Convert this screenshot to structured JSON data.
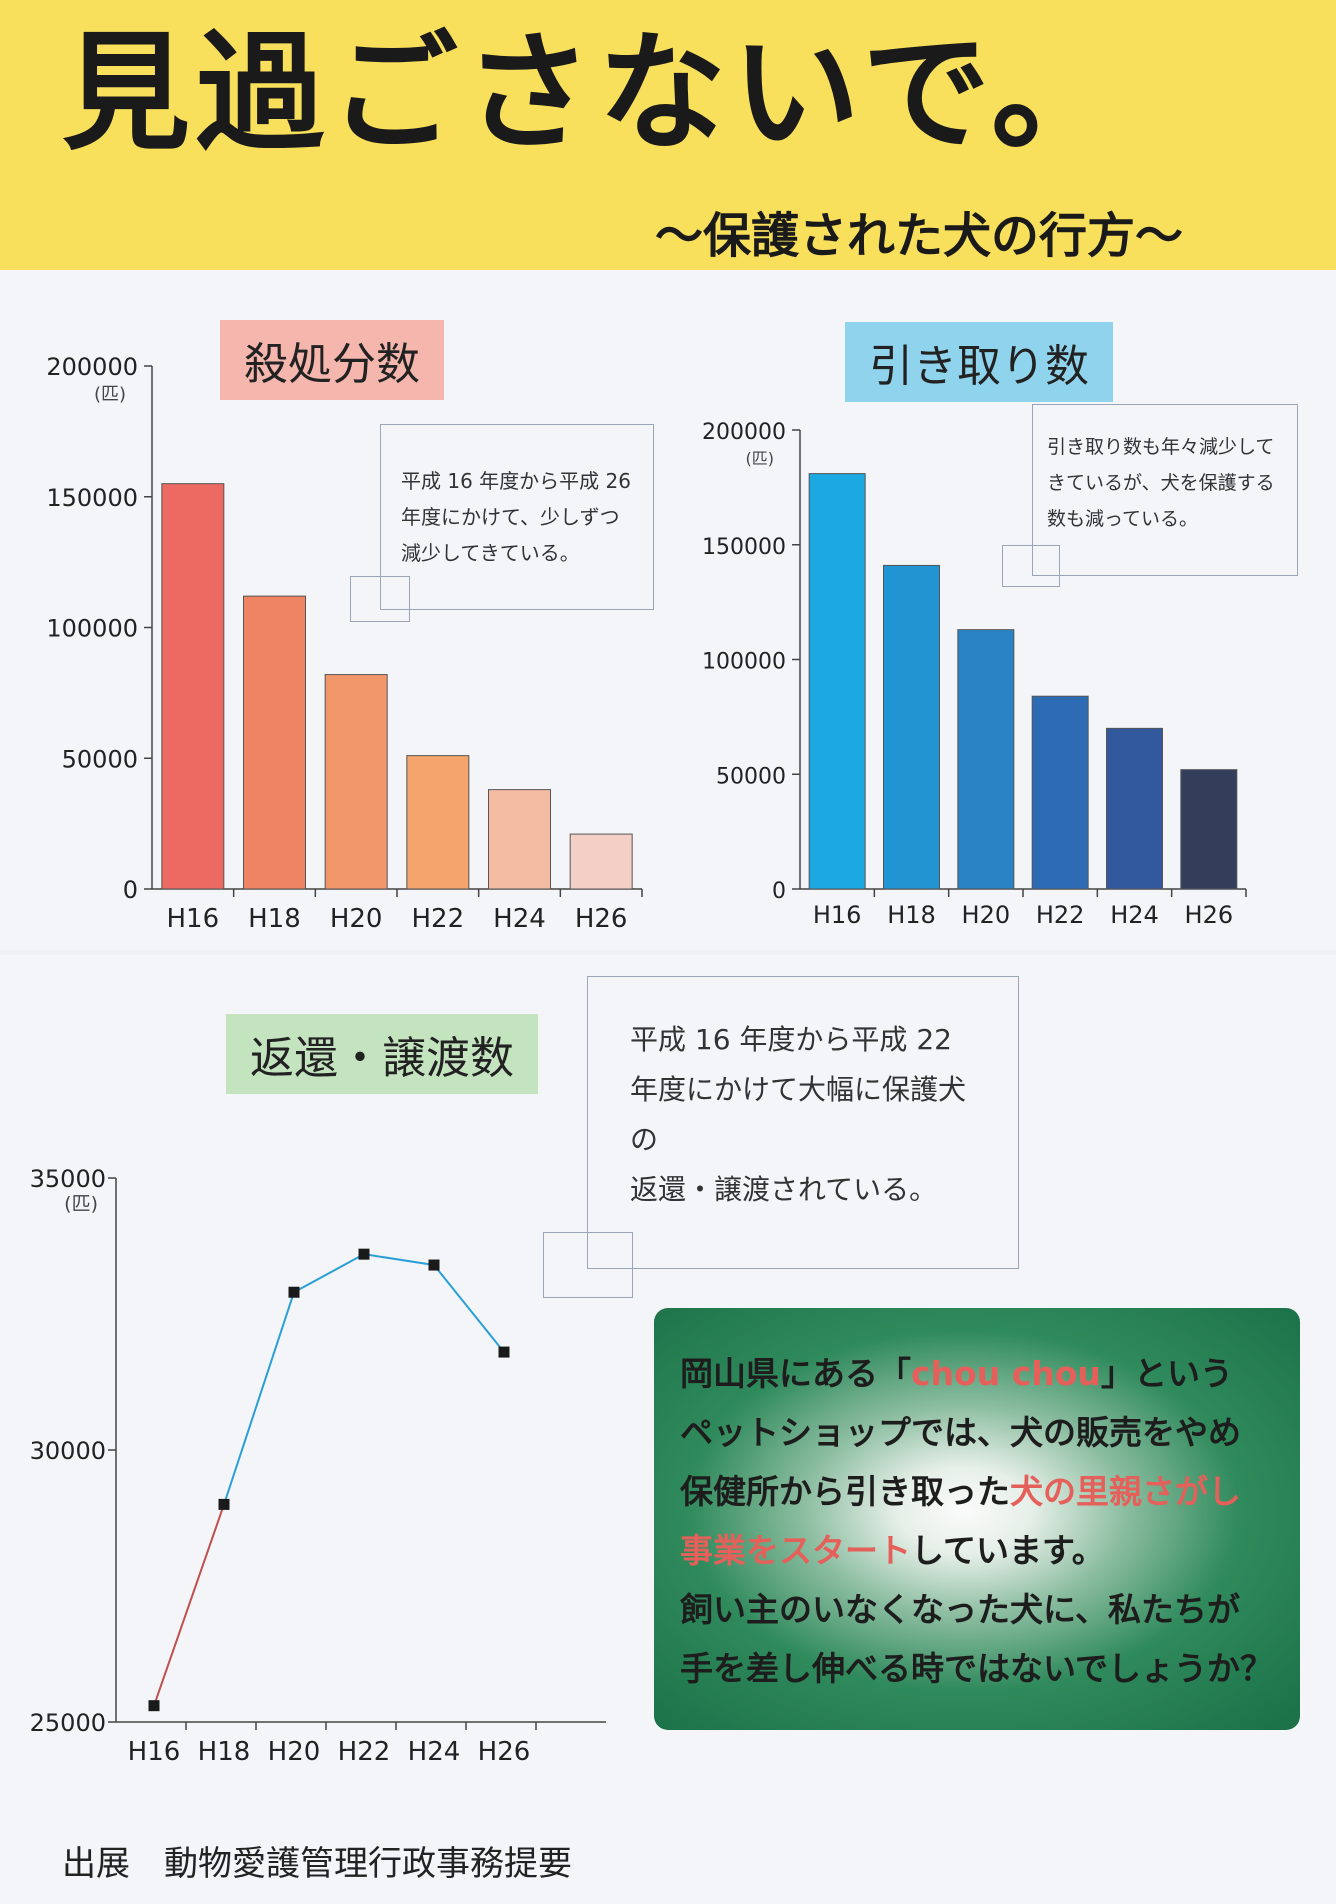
{
  "header": {
    "title": "見過ごさないで。",
    "subtitle": "〜保護された犬の行方〜"
  },
  "chart_data": [
    {
      "type": "bar",
      "title": "殺処分数",
      "unit": "(匹)",
      "categories": [
        "H16",
        "H18",
        "H20",
        "H22",
        "H24",
        "H26"
      ],
      "values": [
        155000,
        112000,
        82000,
        51000,
        38000,
        21000
      ],
      "ylim": [
        0,
        200000
      ],
      "yticks": [
        0,
        50000,
        100000,
        150000,
        200000
      ],
      "colors": [
        "#ec6a62",
        "#ef8464",
        "#f2976a",
        "#f4a46c",
        "#f5bca4",
        "#f4cfc6"
      ],
      "note": {
        "l1": "平成 16 年度から平成 26",
        "l2": "年度にかけて、少しずつ",
        "l3": "減少してきている。"
      }
    },
    {
      "type": "bar",
      "title": "引き取り数",
      "unit": "(匹)",
      "categories": [
        "H16",
        "H18",
        "H20",
        "H22",
        "H24",
        "H26"
      ],
      "values": [
        181000,
        141000,
        113000,
        84000,
        70000,
        52000
      ],
      "ylim": [
        0,
        200000
      ],
      "yticks": [
        0,
        50000,
        100000,
        150000,
        200000
      ],
      "colors": [
        "#1ca8e0",
        "#2194d2",
        "#2a83c4",
        "#2d6cb5",
        "#32589e",
        "#333e5b"
      ],
      "note": {
        "l1": "引き取り数も年々減少して",
        "l2": "きているが、犬を保護する",
        "l3": "数も減っている。"
      }
    },
    {
      "type": "line",
      "title": "返還・譲渡数",
      "unit": "(匹)",
      "categories": [
        "H16",
        "H18",
        "H20",
        "H22",
        "H24",
        "H26"
      ],
      "values": [
        25300,
        29000,
        32900,
        33600,
        33400,
        31800
      ],
      "ylim": [
        25000,
        35000
      ],
      "yticks": [
        25000,
        30000,
        35000
      ],
      "colors": {
        "first_segment": "#c0504d",
        "rest": "#2a9fd6",
        "marker": "#1a1a1a"
      },
      "note": {
        "l1": "平成 16 年度から平成 22",
        "l2": "年度にかけて大幅に保護犬の",
        "l3": "返還・譲渡されている。"
      }
    }
  ],
  "callout": {
    "l1a": "岡山県にある「",
    "l1b": "chou chou",
    "l1c": "」という",
    "l2": "ペットショップでは、犬の販売をやめ",
    "l3a": "保健所から引き取った",
    "l3b": "犬の里親さがし",
    "l4a": "事業をスタート",
    "l4b": "しています。",
    "l5": "飼い主のいなくなった犬に、私たちが",
    "l6": "手を差し伸べる時ではないでしょうか？"
  },
  "source": {
    "label": "出展",
    "text": "動物愛護管理行政事務提要"
  }
}
